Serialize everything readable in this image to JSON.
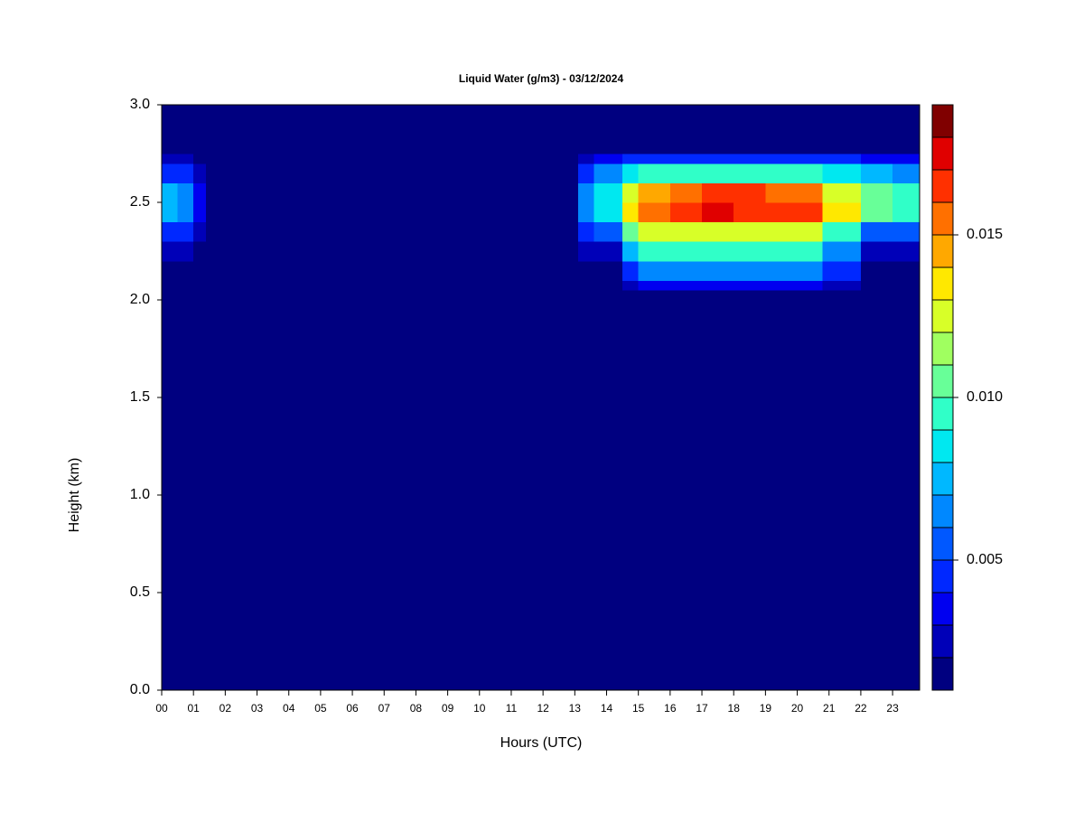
{
  "chart_data": {
    "type": "heatmap",
    "title": "Liquid Water (g/m3) - 03/12/2024",
    "x_label": "Hours (UTC)",
    "y_label": "Height (km)",
    "xlim": [
      0,
      23.85
    ],
    "ylim": [
      0,
      3
    ],
    "xticks": [
      {
        "value": 0,
        "label": "00"
      },
      {
        "value": 1,
        "label": "01"
      },
      {
        "value": 2,
        "label": "02"
      },
      {
        "value": 3,
        "label": "03"
      },
      {
        "value": 4,
        "label": "04"
      },
      {
        "value": 5,
        "label": "05"
      },
      {
        "value": 6,
        "label": "06"
      },
      {
        "value": 7,
        "label": "07"
      },
      {
        "value": 8,
        "label": "08"
      },
      {
        "value": 9,
        "label": "09"
      },
      {
        "value": 10,
        "label": "10"
      },
      {
        "value": 11,
        "label": "11"
      },
      {
        "value": 12,
        "label": "12"
      },
      {
        "value": 13,
        "label": "13"
      },
      {
        "value": 14,
        "label": "14"
      },
      {
        "value": 15,
        "label": "15"
      },
      {
        "value": 16,
        "label": "16"
      },
      {
        "value": 17,
        "label": "17"
      },
      {
        "value": 18,
        "label": "18"
      },
      {
        "value": 19,
        "label": "19"
      },
      {
        "value": 20,
        "label": "20"
      },
      {
        "value": 21,
        "label": "21"
      },
      {
        "value": 22,
        "label": "22"
      },
      {
        "value": 23,
        "label": "23"
      }
    ],
    "yticks": [
      {
        "value": 0,
        "label": "0.0"
      },
      {
        "value": 0.5,
        "label": "0.5"
      },
      {
        "value": 1,
        "label": "1.0"
      },
      {
        "value": 1.5,
        "label": "1.5"
      },
      {
        "value": 2,
        "label": "2.0"
      },
      {
        "value": 2.5,
        "label": "2.5"
      },
      {
        "value": 3,
        "label": "3.0"
      }
    ],
    "x_edges": [
      0,
      0.5,
      1.0,
      1.4,
      13.1,
      13.6,
      14.5,
      15,
      16,
      17,
      18,
      19,
      20,
      20.8,
      22,
      23,
      23.85
    ],
    "y_edges": [
      0,
      2.05,
      2.1,
      2.2,
      2.3,
      2.4,
      2.5,
      2.6,
      2.7,
      2.75,
      3
    ],
    "z": [
      [
        0.001,
        0.001,
        0.001,
        0.001,
        0.001,
        0.001,
        0.001,
        0.001,
        0.001,
        0.001,
        0.001,
        0.001,
        0.001,
        0.001,
        0.001,
        0.001
      ],
      [
        0.001,
        0.001,
        0.001,
        0.001,
        0.001,
        0.001,
        0.002,
        0.003,
        0.003,
        0.003,
        0.003,
        0.003,
        0.003,
        0.002,
        0.001,
        0.001
      ],
      [
        0.001,
        0.001,
        0.001,
        0.001,
        0.001,
        0.001,
        0.004,
        0.006,
        0.006,
        0.006,
        0.006,
        0.006,
        0.006,
        0.004,
        0.001,
        0.001
      ],
      [
        0.002,
        0.002,
        0.001,
        0.001,
        0.002,
        0.002,
        0.007,
        0.009,
        0.009,
        0.009,
        0.009,
        0.009,
        0.009,
        0.006,
        0.002,
        0.002
      ],
      [
        0.004,
        0.004,
        0.002,
        0.001,
        0.004,
        0.005,
        0.01,
        0.012,
        0.012,
        0.012,
        0.012,
        0.012,
        0.012,
        0.009,
        0.005,
        0.005
      ],
      [
        0.007,
        0.006,
        0.003,
        0.001,
        0.006,
        0.008,
        0.013,
        0.015,
        0.016,
        0.017,
        0.016,
        0.016,
        0.016,
        0.013,
        0.01,
        0.009
      ],
      [
        0.007,
        0.006,
        0.003,
        0.001,
        0.006,
        0.008,
        0.012,
        0.014,
        0.015,
        0.016,
        0.016,
        0.015,
        0.015,
        0.012,
        0.01,
        0.009
      ],
      [
        0.004,
        0.004,
        0.002,
        0.001,
        0.004,
        0.006,
        0.008,
        0.009,
        0.009,
        0.009,
        0.009,
        0.009,
        0.009,
        0.008,
        0.007,
        0.006
      ],
      [
        0.002,
        0.002,
        0.001,
        0.001,
        0.002,
        0.003,
        0.004,
        0.004,
        0.004,
        0.004,
        0.004,
        0.004,
        0.004,
        0.004,
        0.003,
        0.003
      ],
      [
        0.001,
        0.001,
        0.001,
        0.001,
        0.001,
        0.001,
        0.001,
        0.001,
        0.001,
        0.001,
        0.001,
        0.001,
        0.001,
        0.001,
        0.001,
        0.001
      ]
    ],
    "levels": [
      0.001,
      0.002,
      0.003,
      0.004,
      0.005,
      0.006,
      0.007,
      0.008,
      0.009,
      0.01,
      0.011,
      0.012,
      0.013,
      0.014,
      0.015,
      0.016,
      0.017,
      0.018,
      0.019
    ],
    "colors": [
      "#000080",
      "#0000b8",
      "#0000f0",
      "#0028ff",
      "#0058ff",
      "#0088ff",
      "#00b8ff",
      "#00e8f0",
      "#30ffc8",
      "#68ff98",
      "#a0ff60",
      "#d8ff28",
      "#ffe800",
      "#ffa800",
      "#ff7000",
      "#ff3000",
      "#e00000",
      "#800000"
    ],
    "colorbar_ticks": [
      0.005,
      {
        "value": 0.01,
        "label": "0.010"
      },
      0.015
    ]
  }
}
